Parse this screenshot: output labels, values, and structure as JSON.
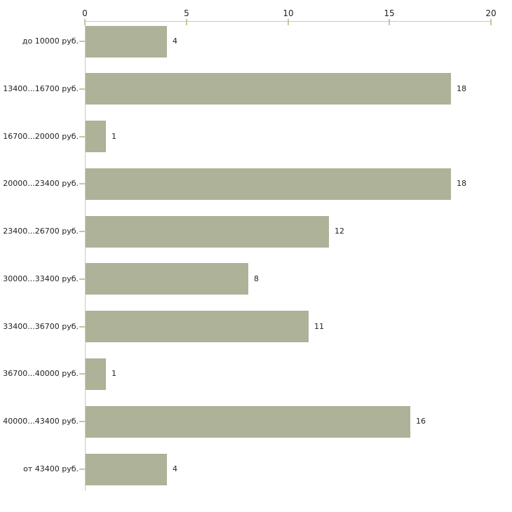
{
  "chart_data": {
    "type": "bar",
    "orientation": "horizontal",
    "title": "",
    "xlabel": "",
    "ylabel": "",
    "categories": [
      "до 10000 руб.",
      "13400...16700 руб.",
      "16700...20000 руб.",
      "20000...23400 руб.",
      "23400...26700 руб.",
      "30000...33400 руб.",
      "33400...36700 руб.",
      "36700...40000 руб.",
      "40000...43400 руб.",
      "от 43400 руб."
    ],
    "values": [
      4,
      18,
      1,
      18,
      12,
      8,
      11,
      1,
      16,
      4
    ],
    "xlim": [
      0,
      20
    ],
    "x_ticks": [
      0,
      5,
      10,
      15,
      20
    ],
    "grid": false,
    "legend": null,
    "data_labels_shown": true,
    "colors": {
      "bar": "#adb298",
      "axis_line": "#c9c9c9",
      "tick_mark": "#c6c69c",
      "text": "#222222",
      "background": "#ffffff"
    }
  }
}
